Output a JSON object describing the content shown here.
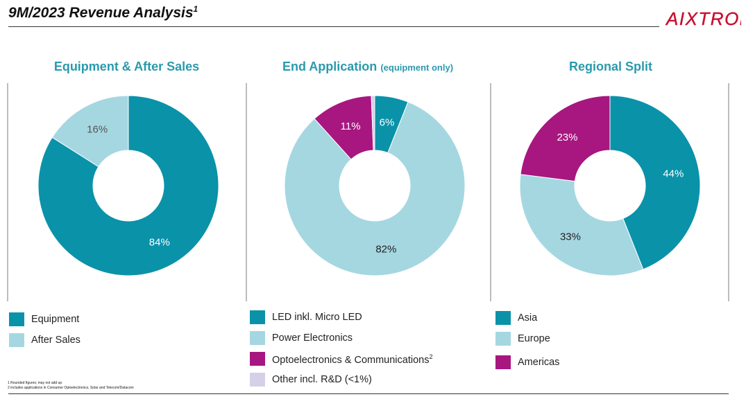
{
  "title": {
    "text": "9M/2023 Revenue Analysis",
    "sup": "1"
  },
  "logo": {
    "text": "AIXTRON"
  },
  "colors": {
    "teal": "#0a92a9",
    "lightblue": "#a5d7e1",
    "magenta": "#a7177f",
    "lavender": "#d6cfe8",
    "title_teal": "#2a9aad"
  },
  "chart_data": [
    {
      "type": "pie",
      "title": "Equipment & After Sales",
      "subtitle": "",
      "series": [
        {
          "name": "Equipment",
          "value": 84,
          "label": "84%",
          "color": "#0a92a9"
        },
        {
          "name": "After Sales",
          "value": 16,
          "label": "16%",
          "color": "#a5d7e1"
        }
      ]
    },
    {
      "type": "pie",
      "title": "End Application",
      "subtitle": "(equipment only)",
      "series": [
        {
          "name": "LED inkl. Micro LED",
          "value": 6,
          "label": "6%",
          "color": "#0a92a9"
        },
        {
          "name": "Power Electronics",
          "value": 82,
          "label": "82%",
          "color": "#a5d7e1"
        },
        {
          "name": "Optoelectronics & Communications",
          "sup": "2",
          "value": 11,
          "label": "11%",
          "color": "#a7177f"
        },
        {
          "name": "Other incl. R&D (<1%)",
          "value": 0.6,
          "label": "",
          "color": "#d6cfe8"
        }
      ]
    },
    {
      "type": "pie",
      "title": "Regional Split",
      "subtitle": "",
      "series": [
        {
          "name": "Asia",
          "value": 44,
          "label": "44%",
          "color": "#0a92a9"
        },
        {
          "name": "Europe",
          "value": 33,
          "label": "33%",
          "color": "#a5d7e1"
        },
        {
          "name": "Americas",
          "value": 23,
          "label": "23%",
          "color": "#a7177f"
        }
      ]
    }
  ],
  "footnotes": {
    "note1": "1 Rounded figures; may not add up",
    "note2": "2 includes applications in Consumer Optoelectronics, Solar and Telecom/Datacom"
  }
}
